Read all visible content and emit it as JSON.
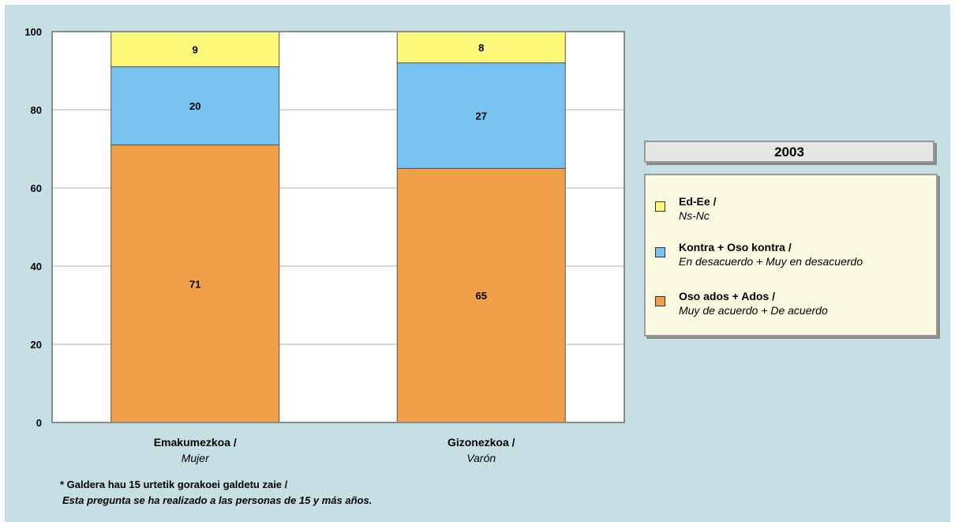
{
  "chart_data": {
    "type": "bar",
    "stacked": true,
    "title": "2003",
    "categories": [
      {
        "line1": "Emakumezkoa /",
        "line2": "Mujer"
      },
      {
        "line1": "Gizonezkoa /",
        "line2": "Varón"
      }
    ],
    "series": [
      {
        "name": "Oso ados + Ados / Muy de acuerdo + De acuerdo",
        "name_line1": "Oso ados + Ados /",
        "name_line2": "Muy de acuerdo + De acuerdo",
        "color": "#efa048",
        "values": [
          71,
          65
        ]
      },
      {
        "name": "Kontra + Oso kontra / En desacuerdo + Muy en desacuerdo",
        "name_line1": "Kontra + Oso kontra /",
        "name_line2": "En desacuerdo + Muy en desacuerdo",
        "color": "#78c2f2",
        "values": [
          20,
          27
        ]
      },
      {
        "name": "Ed-Ee / Ns-Nc",
        "name_line1": "Ed-Ee /",
        "name_line2": "Ns-Nc",
        "color": "#fbf87a",
        "values": [
          9,
          8
        ]
      }
    ],
    "legend_order": [
      2,
      1,
      0
    ],
    "ylim": [
      0,
      100
    ],
    "yticks": [
      0,
      20,
      40,
      60,
      80,
      100
    ],
    "grid": true,
    "legend_position": "right"
  },
  "footnote": {
    "line1": "* Galdera hau 15 urtetik gorakoei galdetu zaie /",
    "line2": "Esta pregunta se ha realizado a las personas de 15 y más años."
  }
}
